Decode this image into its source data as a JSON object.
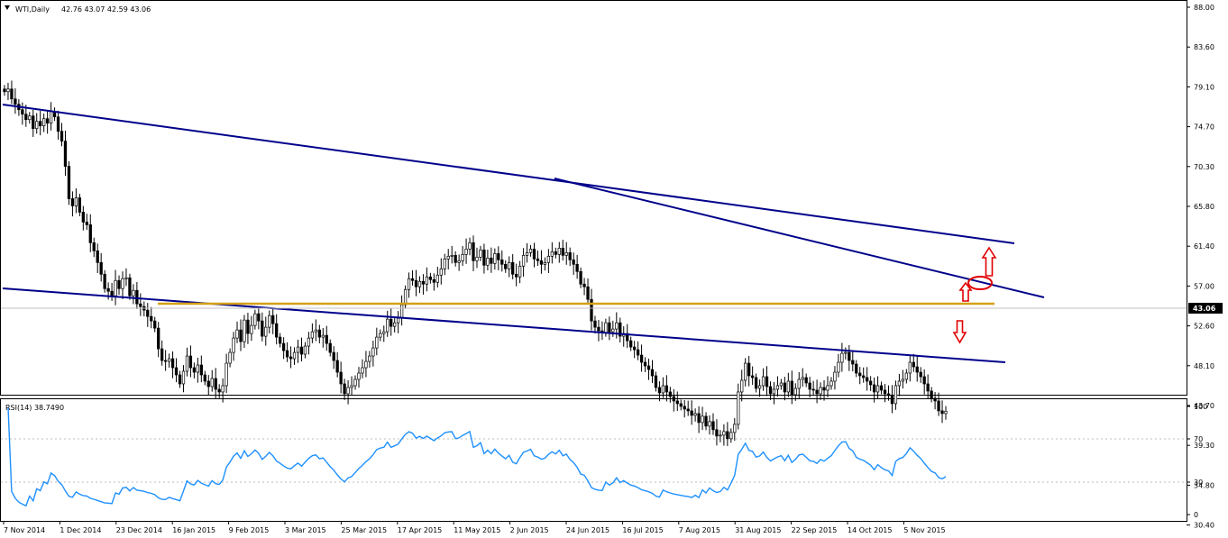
{
  "header": {
    "symbol": "WTI,Daily",
    "ohlc": "42.76 43.07 42.59 43.06"
  },
  "rsi_header": {
    "label": "RSI(14) 38.7490"
  },
  "current_price_label": "43.06",
  "colors": {
    "candle": "#000000",
    "channel": "#00008b",
    "support": "#d4a017",
    "rsi_line": "#1e90ff",
    "arrows": "#e00000",
    "price_box": "#000000"
  },
  "chart_data": [
    {
      "type": "candlestick",
      "title": "WTI,Daily",
      "y_ticks": [
        "88.00",
        "83.60",
        "79.10",
        "74.70",
        "70.30",
        "65.80",
        "61.40",
        "57.00",
        "52.60",
        "48.10",
        "43.70",
        "39.30",
        "34.80",
        "30.40"
      ],
      "x_ticks": [
        "7 Nov 2014",
        "1 Dec 2014",
        "23 Dec 2014",
        "16 Jan 2015",
        "9 Feb 2015",
        "3 Mar 2015",
        "25 Mar 2015",
        "17 Apr 2015",
        "11 May 2015",
        "2 Jun 2015",
        "24 Jun 2015",
        "16 Jul 2015",
        "7 Aug 2015",
        "31 Aug 2015",
        "22 Sep 2015",
        "14 Oct 2015",
        "5 Nov 2015"
      ],
      "ylim": [
        30.4,
        88.0
      ],
      "closes": [
        78.6,
        78.9,
        77.8,
        77.2,
        76.6,
        76.1,
        75.5,
        75.9,
        74.5,
        75.3,
        74.8,
        75.6,
        75.1,
        76.4,
        75.8,
        74.2,
        73.1,
        70.3,
        66.7,
        65.9,
        66.8,
        65.2,
        64.1,
        63.8,
        61.8,
        60.9,
        59.6,
        58.3,
        56.7,
        56.4,
        55.9,
        57.6,
        56.7,
        57.8,
        57.9,
        55.9,
        56.5,
        55.0,
        54.7,
        54.3,
        53.6,
        53.1,
        52.3,
        50.0,
        48.7,
        48.6,
        48.9,
        47.9,
        47.1,
        46.1,
        47.5,
        49.2,
        47.9,
        47.4,
        48.2,
        47.1,
        46.4,
        45.8,
        46.7,
        45.5,
        45.2,
        45.9,
        48.4,
        49.6,
        51.2,
        52.1,
        50.8,
        53.2,
        51.7,
        52.6,
        53.9,
        53.1,
        51.4,
        52.4,
        53.7,
        52.8,
        51.3,
        50.6,
        49.8,
        49.1,
        48.9,
        49.6,
        50.2,
        49.4,
        50.3,
        51.2,
        51.9,
        52.1,
        51.3,
        51.5,
        50.6,
        49.6,
        48.7,
        47.4,
        46.1,
        45.0,
        45.7,
        45.9,
        46.6,
        47.3,
        47.9,
        48.6,
        49.2,
        50.1,
        51.3,
        51.7,
        51.9,
        53.3,
        52.5,
        52.9,
        53.4,
        54.9,
        56.6,
        57.8,
        57.6,
        56.9,
        57.5,
        57.2,
        58.0,
        57.7,
        57.4,
        58.2,
        58.9,
        60.0,
        60.3,
        60.4,
        59.6,
        59.8,
        60.5,
        61.1,
        61.8,
        59.8,
        60.2,
        61.0,
        59.3,
        60.1,
        59.5,
        60.6,
        59.9,
        59.4,
        58.9,
        59.6,
        58.3,
        58.0,
        59.2,
        60.4,
        60.7,
        61.1,
        60.0,
        59.8,
        59.4,
        59.6,
        60.3,
        60.8,
        60.5,
        61.2,
        60.4,
        60.7,
        59.9,
        59.4,
        58.6,
        57.2,
        56.9,
        55.5,
        53.1,
        52.4,
        52.0,
        51.8,
        52.9,
        51.9,
        52.2,
        52.9,
        51.4,
        51.7,
        50.9,
        50.2,
        49.9,
        49.3,
        48.5,
        48.1,
        47.7,
        47.0,
        45.7,
        45.1,
        45.9,
        45.2,
        44.7,
        44.2,
        43.9,
        43.6,
        43.3,
        43.1,
        42.6,
        42.8,
        41.8,
        42.5,
        41.4,
        41.9,
        41.0,
        40.3,
        40.4,
        40.8,
        40.0,
        40.7,
        41.6,
        45.2,
        46.5,
        48.4,
        47.0,
        46.8,
        45.6,
        45.9,
        46.9,
        45.8,
        45.0,
        45.5,
        45.9,
        46.2,
        45.2,
        46.4,
        44.9,
        45.6,
        46.6,
        46.8,
        46.2,
        45.5,
        45.4,
        45.0,
        45.7,
        45.4,
        45.9,
        46.4,
        47.4,
        48.5,
        49.5,
        49.6,
        48.7,
        48.3,
        47.3,
        47.0,
        46.8,
        46.4,
        46.0,
        45.2,
        45.9,
        45.4,
        45.0,
        44.8,
        43.9,
        45.9,
        46.4,
        46.6,
        47.3,
        48.5,
        48.0,
        47.4,
        46.9,
        46.1,
        45.3,
        44.5,
        44.2,
        43.1,
        42.8,
        43.06
      ]
    },
    {
      "type": "line",
      "title": "RSI(14) 38.7490",
      "y_ticks": [
        "100",
        "70",
        "30",
        "0"
      ],
      "ylim": [
        0,
        100
      ],
      "levels": [
        30,
        70
      ]
    }
  ]
}
